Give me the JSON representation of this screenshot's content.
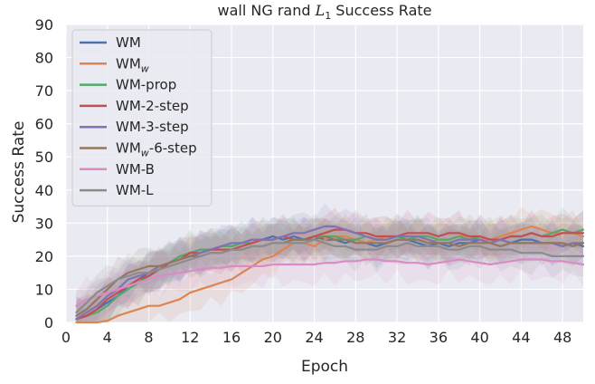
{
  "chart_data": {
    "type": "line",
    "title": "wall NG rand L_1 Success Rate",
    "title_parts": {
      "prefix": "wall NG rand ",
      "var": "L",
      "sub": "1",
      "suffix": " Success Rate"
    },
    "xlabel": "Epoch",
    "ylabel": "Success Rate",
    "xlim": [
      0,
      50
    ],
    "ylim": [
      0,
      90
    ],
    "xticks": [
      "0",
      "4",
      "8",
      "12",
      "16",
      "20",
      "24",
      "28",
      "32",
      "36",
      "40",
      "44",
      "48"
    ],
    "yticks": [
      "0",
      "10",
      "20",
      "30",
      "40",
      "50",
      "60",
      "70",
      "80",
      "90"
    ],
    "grid": true,
    "legend_position": "top-left",
    "x": [
      1,
      2,
      3,
      4,
      5,
      6,
      7,
      8,
      9,
      10,
      11,
      12,
      13,
      14,
      15,
      16,
      17,
      18,
      19,
      20,
      21,
      22,
      23,
      24,
      25,
      26,
      27,
      28,
      29,
      30,
      31,
      32,
      33,
      34,
      35,
      36,
      37,
      38,
      39,
      40,
      41,
      42,
      43,
      44,
      45,
      46,
      47,
      48,
      49,
      50
    ],
    "series": [
      {
        "name": "WM",
        "label_main": "WM",
        "label_sub": "",
        "label_suffix": "",
        "color": "#4c72b0",
        "values": [
          1,
          2,
          4,
          6,
          8,
          11,
          13,
          15,
          16,
          18,
          19,
          20,
          21,
          22,
          23,
          23,
          24,
          25,
          25,
          26,
          25,
          26,
          25,
          26,
          25,
          25,
          24,
          25,
          24,
          23,
          24,
          25,
          25,
          24,
          23,
          24,
          23,
          24,
          24,
          25,
          24,
          25,
          24,
          25,
          25,
          24,
          24,
          23,
          24,
          23
        ]
      },
      {
        "name": "WM_w",
        "label_main": "WM",
        "label_sub": "w",
        "label_suffix": "",
        "color": "#dd8452",
        "values": [
          0,
          0,
          0,
          0.5,
          2,
          3,
          4,
          5,
          5,
          6,
          7,
          9,
          10,
          11,
          12,
          13,
          15,
          17,
          19,
          20,
          22,
          24,
          24,
          23,
          25,
          26,
          26,
          25,
          24,
          25,
          26,
          26,
          25,
          25,
          24,
          25,
          25,
          26,
          26,
          25,
          25,
          26,
          27,
          28,
          29,
          28,
          27,
          27,
          27,
          26
        ]
      },
      {
        "name": "WM-prop",
        "label_main": "WM-prop",
        "label_sub": "",
        "label_suffix": "",
        "color": "#55a868",
        "values": [
          1,
          2,
          3,
          5,
          8,
          10,
          12,
          14,
          16,
          18,
          20,
          21,
          22,
          22,
          23,
          23,
          24,
          24,
          25,
          25,
          26,
          25,
          25,
          26,
          26,
          26,
          25,
          25,
          26,
          25,
          25,
          26,
          25,
          26,
          26,
          25,
          25,
          26,
          25,
          26,
          25,
          25,
          26,
          26,
          27,
          26,
          27,
          28,
          27,
          28
        ]
      },
      {
        "name": "WM-2-step",
        "label_main": "WM-2-step",
        "label_sub": "",
        "label_suffix": "",
        "color": "#c44e52",
        "values": [
          1,
          2,
          4,
          7,
          9,
          11,
          13,
          14,
          16,
          18,
          19,
          21,
          21,
          22,
          22,
          22,
          23,
          24,
          25,
          25,
          26,
          25,
          25,
          26,
          27,
          28,
          28,
          27,
          27,
          26,
          26,
          26,
          27,
          27,
          27,
          26,
          27,
          27,
          26,
          26,
          25,
          25,
          26,
          26,
          27,
          26,
          26,
          27,
          27,
          27
        ]
      },
      {
        "name": "WM-3-step",
        "label_main": "WM-3-step",
        "label_sub": "",
        "label_suffix": "",
        "color": "#8172b3",
        "values": [
          1,
          3,
          5,
          8,
          10,
          13,
          14,
          15,
          17,
          18,
          19,
          20,
          21,
          22,
          23,
          24,
          24,
          25,
          25,
          25,
          26,
          27,
          27,
          28,
          29,
          29,
          28,
          27,
          26,
          25,
          25,
          26,
          26,
          26,
          25,
          24,
          24,
          25,
          25,
          25,
          24,
          25,
          24,
          24,
          24,
          24,
          24,
          23,
          24,
          24
        ]
      },
      {
        "name": "WM_w-6-step",
        "label_main": "WM",
        "label_sub": "w",
        "label_suffix": "-6-step",
        "color": "#937860",
        "values": [
          2,
          4,
          7,
          10,
          13,
          15,
          16,
          17,
          17,
          18,
          19,
          20,
          20,
          21,
          21,
          22,
          22,
          23,
          23,
          24,
          24,
          25,
          25,
          25,
          26,
          25,
          25,
          24,
          24,
          24,
          24,
          25,
          25,
          25,
          24,
          24,
          24,
          23,
          24,
          24,
          24,
          23,
          24,
          24,
          24,
          24,
          24,
          24,
          23,
          24
        ]
      },
      {
        "name": "WM-B",
        "label_main": "WM-B",
        "label_sub": "",
        "label_suffix": "",
        "color": "#da8bc3",
        "values": [
          5,
          7,
          8,
          9,
          10,
          11,
          12,
          13,
          14,
          14.5,
          15,
          15.5,
          16,
          16.5,
          16.5,
          17,
          17,
          17,
          17,
          17.5,
          17.5,
          17.5,
          17.5,
          17.5,
          18,
          18,
          18.5,
          18.5,
          19,
          19,
          18.5,
          18.5,
          18,
          18,
          17.5,
          18,
          18.5,
          19,
          18.5,
          18,
          17.5,
          18,
          18.5,
          19,
          19,
          19,
          18.5,
          18.5,
          18,
          17.5
        ]
      },
      {
        "name": "WM-L",
        "label_main": "WM-L",
        "label_sub": "",
        "label_suffix": "",
        "color": "#8c8c8c",
        "values": [
          3,
          6,
          9,
          11,
          13,
          14,
          15,
          15,
          16,
          17,
          18,
          19,
          20,
          21,
          21,
          22,
          22,
          23,
          23,
          24,
          24,
          24,
          24,
          25,
          24,
          23,
          23,
          22,
          22,
          22,
          23,
          23,
          24,
          23,
          23,
          23,
          22,
          22,
          23,
          23,
          22,
          22,
          22,
          21,
          21,
          21,
          20,
          20,
          20,
          20
        ]
      }
    ]
  }
}
